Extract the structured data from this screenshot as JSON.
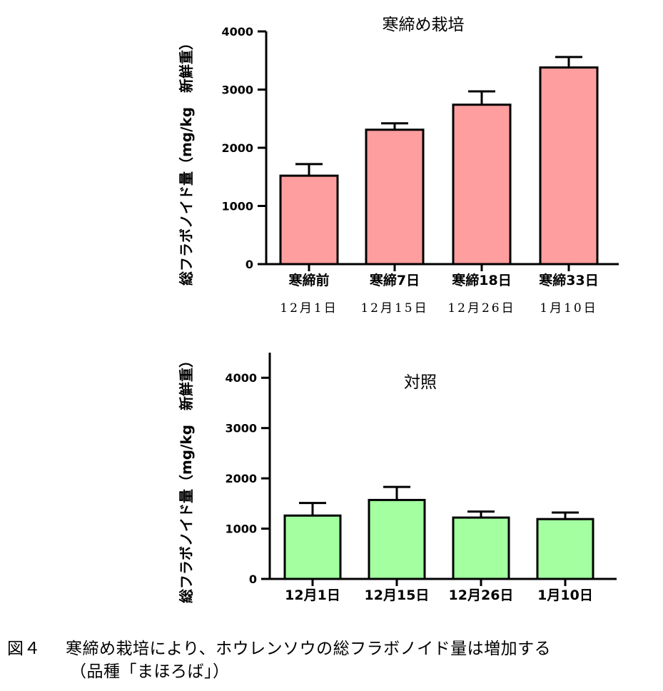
{
  "chart_data": [
    {
      "type": "bar",
      "title": "寒締め栽培",
      "ylabel": "総フラボノイド量（mg/kg　新鮮重）",
      "ylim": [
        0,
        4000
      ],
      "yticks": [
        0,
        1000,
        2000,
        3000,
        4000
      ],
      "categories": [
        "寒締前",
        "寒締7日",
        "寒締18日",
        "寒締33日"
      ],
      "dates": [
        "12月1日",
        "12月15日",
        "12月26日",
        "1月10日"
      ],
      "values": [
        1520,
        2310,
        2740,
        3380
      ],
      "errors": [
        200,
        110,
        230,
        180
      ],
      "color": "#ff9e9e"
    },
    {
      "type": "bar",
      "title": "対照",
      "ylabel": "総フラボノイド量（mg/kg　新鮮重）",
      "ylim": [
        0,
        4500
      ],
      "yticks": [
        0,
        1000,
        2000,
        3000,
        4000
      ],
      "categories": [
        "12月1日",
        "12月15日",
        "12月26日",
        "1月10日"
      ],
      "values": [
        1260,
        1570,
        1220,
        1190
      ],
      "errors": [
        250,
        260,
        120,
        130
      ],
      "color": "#a3ff9f"
    }
  ],
  "caption": {
    "label": "図４",
    "line1": "寒締め栽培により、ホウレンソウの総フラボノイド量は増加する",
    "line2": "（品種「まほろば」）"
  }
}
